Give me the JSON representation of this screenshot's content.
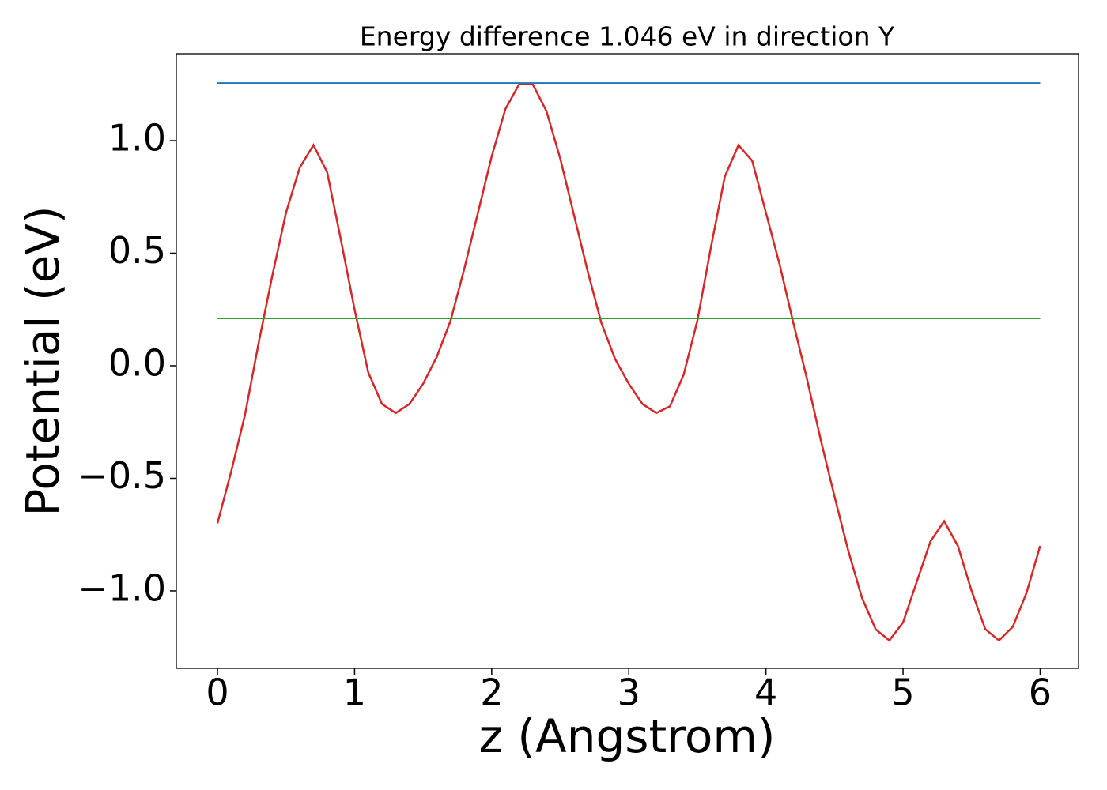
{
  "chart_data": {
    "type": "line",
    "title": "Energy difference 1.046 eV in direction Y",
    "x_label": "z (Angstrom)",
    "y_label": "Potential (eV)",
    "xlim": [
      -0.3,
      6.28
    ],
    "ylim": [
      -1.344,
      1.386
    ],
    "xticks": [
      0,
      1,
      2,
      3,
      4,
      5,
      6
    ],
    "yticks": [
      {
        "value": -1.0,
        "label": "−1.0"
      },
      {
        "value": -0.5,
        "label": "−0.5"
      },
      {
        "value": 0.0,
        "label": "0.0"
      },
      {
        "value": 0.5,
        "label": "0.5"
      },
      {
        "value": 1.0,
        "label": "1.0"
      }
    ],
    "grid": false,
    "series": [
      {
        "color": "#d62728",
        "x": [
          0.0,
          0.1,
          0.2,
          0.3,
          0.4,
          0.5,
          0.6,
          0.7,
          0.8,
          0.9,
          1.0,
          1.1,
          1.2,
          1.3,
          1.4,
          1.5,
          1.6,
          1.7,
          1.8,
          1.9,
          2.0,
          2.1,
          2.2,
          2.3,
          2.4,
          2.5,
          2.6,
          2.7,
          2.8,
          2.9,
          3.0,
          3.1,
          3.2,
          3.3,
          3.4,
          3.5,
          3.6,
          3.7,
          3.8,
          3.9,
          4.0,
          4.1,
          4.2,
          4.3,
          4.4,
          4.5,
          4.6,
          4.7,
          4.8,
          4.9,
          5.0,
          5.1,
          5.2,
          5.3,
          5.4,
          5.5,
          5.6,
          5.7,
          5.8,
          5.9,
          6.0
        ],
        "values": [
          -0.7,
          -0.47,
          -0.22,
          0.1,
          0.4,
          0.68,
          0.88,
          0.98,
          0.86,
          0.56,
          0.25,
          -0.03,
          -0.17,
          -0.21,
          -0.17,
          -0.08,
          0.04,
          0.2,
          0.43,
          0.68,
          0.93,
          1.14,
          1.25,
          1.25,
          1.13,
          0.92,
          0.67,
          0.42,
          0.19,
          0.03,
          -0.08,
          -0.17,
          -0.21,
          -0.18,
          -0.04,
          0.2,
          0.53,
          0.84,
          0.98,
          0.91,
          0.68,
          0.45,
          0.19,
          -0.06,
          -0.33,
          -0.58,
          -0.82,
          -1.03,
          -1.17,
          -1.22,
          -1.14,
          -0.96,
          -0.78,
          -0.69,
          -0.8,
          -1.0,
          -1.17,
          -1.22,
          -1.16,
          -1.01,
          -0.8
        ]
      },
      {
        "color": "#1f77b4",
        "x": [
          0,
          6
        ],
        "values": [
          1.256,
          1.256
        ]
      },
      {
        "color": "#2ca02c",
        "x": [
          0,
          6
        ],
        "values": [
          0.21,
          0.21
        ]
      }
    ]
  }
}
